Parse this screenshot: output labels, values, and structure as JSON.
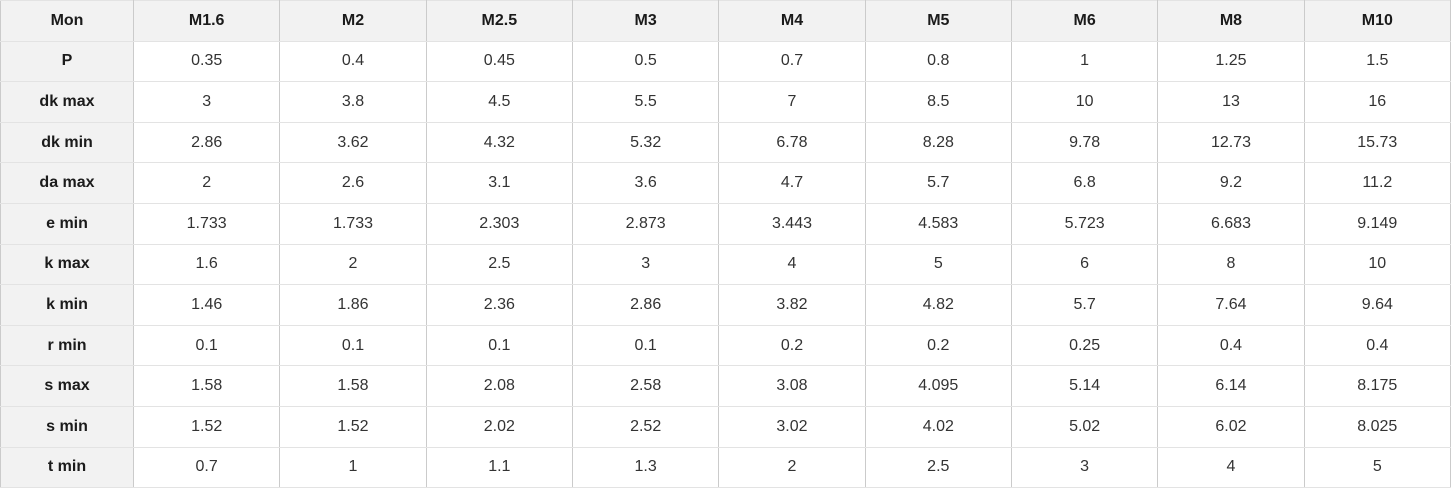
{
  "table": {
    "columns": [
      "Mon",
      "M1.6",
      "M2",
      "M2.5",
      "M3",
      "M4",
      "M5",
      "M6",
      "M8",
      "M10"
    ],
    "rows": [
      {
        "label": "P",
        "values": [
          "0.35",
          "0.4",
          "0.45",
          "0.5",
          "0.7",
          "0.8",
          "1",
          "1.25",
          "1.5"
        ]
      },
      {
        "label": "dk max",
        "values": [
          "3",
          "3.8",
          "4.5",
          "5.5",
          "7",
          "8.5",
          "10",
          "13",
          "16"
        ]
      },
      {
        "label": "dk min",
        "values": [
          "2.86",
          "3.62",
          "4.32",
          "5.32",
          "6.78",
          "8.28",
          "9.78",
          "12.73",
          "15.73"
        ]
      },
      {
        "label": "da max",
        "values": [
          "2",
          "2.6",
          "3.1",
          "3.6",
          "4.7",
          "5.7",
          "6.8",
          "9.2",
          "11.2"
        ]
      },
      {
        "label": "e min",
        "values": [
          "1.733",
          "1.733",
          "2.303",
          "2.873",
          "3.443",
          "4.583",
          "5.723",
          "6.683",
          "9.149"
        ]
      },
      {
        "label": "k max",
        "values": [
          "1.6",
          "2",
          "2.5",
          "3",
          "4",
          "5",
          "6",
          "8",
          "10"
        ]
      },
      {
        "label": "k min",
        "values": [
          "1.46",
          "1.86",
          "2.36",
          "2.86",
          "3.82",
          "4.82",
          "5.7",
          "7.64",
          "9.64"
        ]
      },
      {
        "label": "r min",
        "values": [
          "0.1",
          "0.1",
          "0.1",
          "0.1",
          "0.2",
          "0.2",
          "0.25",
          "0.4",
          "0.4"
        ]
      },
      {
        "label": "s max",
        "values": [
          "1.58",
          "1.58",
          "2.08",
          "2.58",
          "3.08",
          "4.095",
          "5.14",
          "6.14",
          "8.175"
        ]
      },
      {
        "label": "s min",
        "values": [
          "1.52",
          "1.52",
          "2.02",
          "2.52",
          "3.02",
          "4.02",
          "5.02",
          "6.02",
          "8.025"
        ]
      },
      {
        "label": "t min",
        "values": [
          "0.7",
          "1",
          "1.1",
          "1.3",
          "2",
          "2.5",
          "3",
          "4",
          "5"
        ]
      }
    ]
  },
  "colors": {
    "header_bg": "#f2f2f2",
    "vertical_border": "#cbcbcb",
    "horizontal_border": "#e3e3e3",
    "header_text": "#1b1b1b",
    "cell_text": "#333333"
  }
}
